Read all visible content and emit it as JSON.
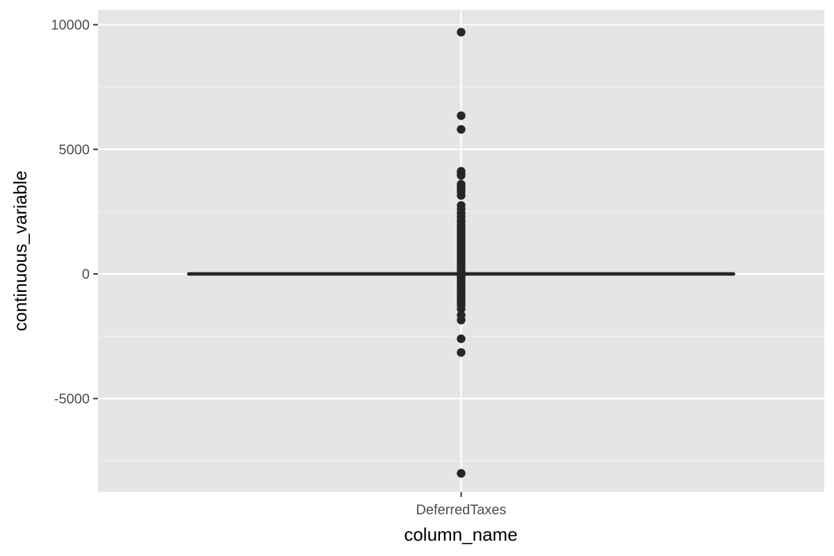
{
  "chart_data": {
    "type": "boxplot",
    "title": "",
    "xlabel": "column_name",
    "ylabel": "continuous_variable",
    "categories": [
      "DeferredTaxes"
    ],
    "ylim": [
      -8750,
      10600
    ],
    "y_ticks": [
      -5000,
      0,
      5000,
      10000
    ],
    "y_tick_labels": [
      "-5000",
      "0",
      "5000",
      "10000"
    ],
    "grid": true,
    "legend": "none",
    "box": {
      "category": "DeferredTaxes",
      "q1": 0,
      "median": 0,
      "q3": 0,
      "whisker_low": 0,
      "whisker_high": 0
    },
    "outliers": [
      9700,
      6350,
      5800,
      4120,
      4050,
      3950,
      3600,
      3500,
      3400,
      3300,
      3150,
      2750,
      2600,
      2450,
      2300,
      2150,
      2050,
      1950,
      1850,
      1750,
      1650,
      1550,
      1450,
      1350,
      1250,
      1150,
      1050,
      950,
      850,
      750,
      650,
      550,
      450,
      350,
      250,
      150,
      100,
      -100,
      -150,
      -250,
      -350,
      -450,
      -550,
      -650,
      -750,
      -850,
      -950,
      -1050,
      -1150,
      -1250,
      -1400,
      -1650,
      -1850,
      -2600,
      -3150,
      -8000
    ],
    "colors": {
      "panel_background": "#e5e5e5",
      "grid_major": "#ffffff",
      "grid_minor": "#f2f2f2",
      "marks": "#262626",
      "tick_text": "#4d4d4d",
      "axis_title": "#000000"
    }
  }
}
